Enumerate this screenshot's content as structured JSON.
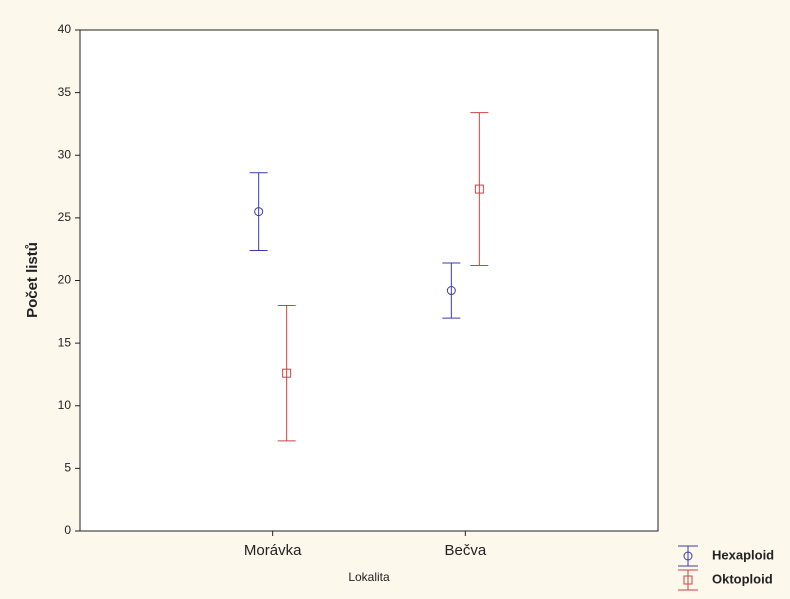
{
  "chart_data": {
    "type": "errorbar",
    "x_label": "Lokalita",
    "y_label": "Počet listů",
    "categories": [
      "Morávka",
      "Bečva"
    ],
    "series": [
      {
        "name": "Hexaploid",
        "color": "#3b3bab",
        "marker": "circle",
        "values": [
          25.5,
          19.2
        ],
        "errors": [
          3.1,
          2.2
        ]
      },
      {
        "name": "Oktoploid",
        "color": "#c94444",
        "marker": "square",
        "values": [
          12.6,
          27.3
        ],
        "errors": [
          5.4,
          6.1
        ]
      }
    ],
    "ylim": [
      0,
      40
    ],
    "yticks": [
      0,
      5,
      10,
      15,
      20,
      25,
      30,
      35,
      40
    ],
    "grid": false,
    "legend": "bottom-right"
  }
}
